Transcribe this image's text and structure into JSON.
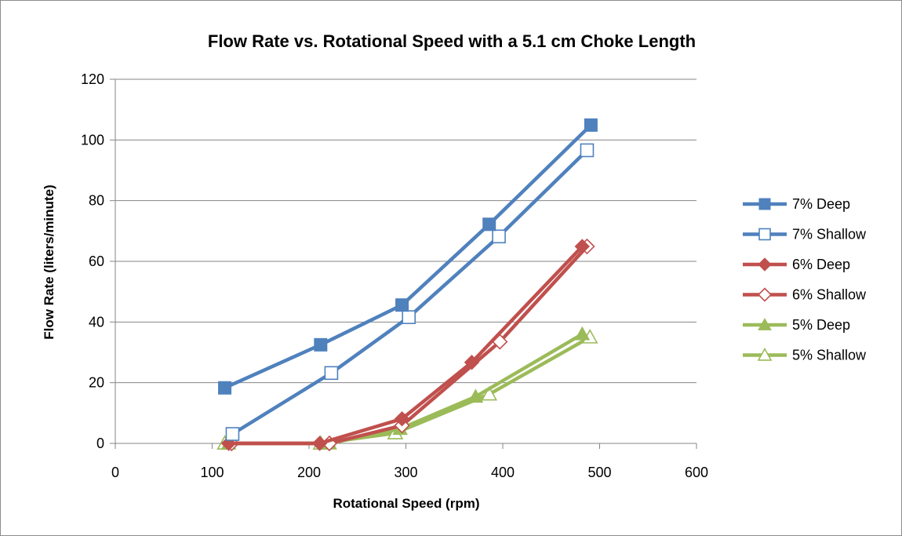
{
  "chart_data": {
    "type": "line",
    "title": "Flow Rate vs. Rotational Speed with a 5.1 cm Choke Length",
    "xlabel": "Rotational Speed (rpm)",
    "ylabel": "Flow Rate (liters/minute)",
    "xlim": [
      0,
      600
    ],
    "ylim": [
      0,
      120
    ],
    "x_ticks": [
      0,
      100,
      200,
      300,
      400,
      500,
      600
    ],
    "y_ticks": [
      0,
      20,
      40,
      60,
      80,
      100,
      120
    ],
    "grid": "horizontal",
    "legend_position": "right",
    "series": [
      {
        "name": "7% Deep",
        "color": "#4f81bd",
        "marker": "square-filled",
        "x": [
          113,
          212,
          296,
          386,
          491
        ],
        "y": [
          18.3,
          32.5,
          45.6,
          72.2,
          104.9
        ]
      },
      {
        "name": "7% Shallow",
        "color": "#4f81bd",
        "marker": "square-open",
        "x": [
          121,
          223,
          303,
          396,
          487
        ],
        "y": [
          3.1,
          23.2,
          41.6,
          68.2,
          96.6
        ]
      },
      {
        "name": "6% Deep",
        "color": "#c0504d",
        "marker": "diamond-filled",
        "x": [
          117,
          211,
          296,
          368,
          482
        ],
        "y": [
          0,
          0,
          8.1,
          26.7,
          64.9
        ]
      },
      {
        "name": "6% Shallow",
        "color": "#c0504d",
        "marker": "diamond-open",
        "x": [
          120,
          221,
          296,
          397,
          487
        ],
        "y": [
          0,
          0,
          5.9,
          33.5,
          64.9
        ]
      },
      {
        "name": "5% Deep",
        "color": "#9bbb59",
        "marker": "triangle-filled",
        "x": [
          117,
          221,
          294,
          372,
          482
        ],
        "y": [
          0,
          0,
          4.8,
          15.4,
          36.0
        ]
      },
      {
        "name": "5% Shallow",
        "color": "#9bbb59",
        "marker": "triangle-open",
        "x": [
          113,
          212,
          289,
          386,
          490
        ],
        "y": [
          0,
          0,
          3.4,
          16.2,
          35.0
        ]
      }
    ]
  }
}
